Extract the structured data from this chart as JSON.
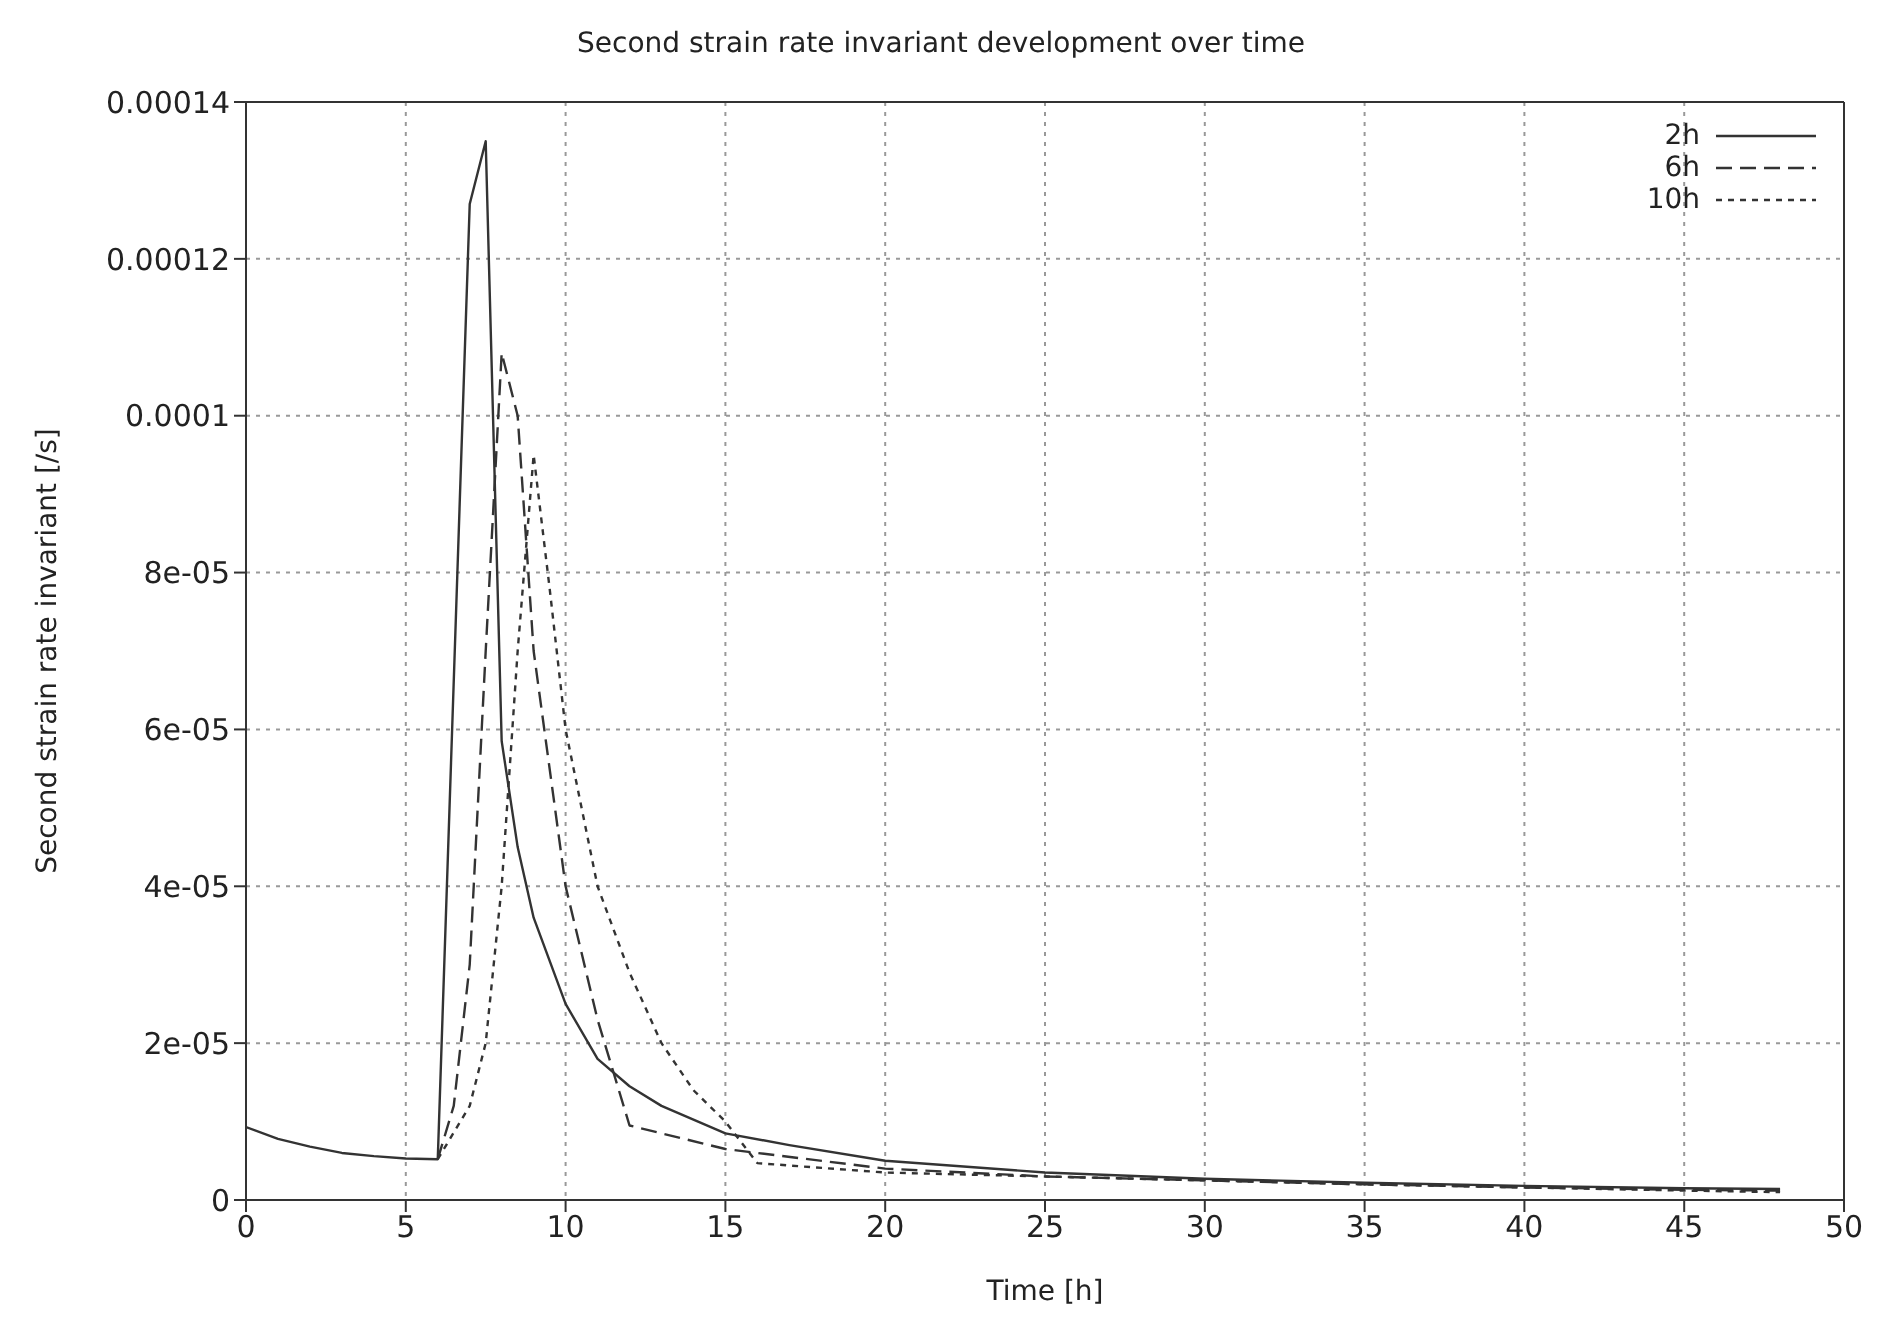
{
  "chart_data": {
    "type": "line",
    "title": "Second strain rate invariant development over time",
    "xlabel": "Time [h]",
    "ylabel": "Second strain rate invariant [/s]",
    "xlim": [
      0,
      50
    ],
    "xticks": [
      0,
      5,
      10,
      15,
      20,
      25,
      30,
      35,
      40,
      45,
      50
    ],
    "ylim": [
      0,
      0.00014
    ],
    "yticks": [
      {
        "value": 0,
        "label": "0"
      },
      {
        "value": 2e-05,
        "label": "2e-05"
      },
      {
        "value": 4e-05,
        "label": "4e-05"
      },
      {
        "value": 6e-05,
        "label": "6e-05"
      },
      {
        "value": 8e-05,
        "label": "8e-05"
      },
      {
        "value": 0.0001,
        "label": "0.0001"
      },
      {
        "value": 0.00012,
        "label": "0.00012"
      },
      {
        "value": 0.00014,
        "label": "0.00014"
      }
    ],
    "grid": true,
    "legend": "top right",
    "marker": "none",
    "series": [
      {
        "name": "2h",
        "color": "#333333",
        "line_style": "solid",
        "x": [
          0,
          1,
          2,
          3,
          4,
          5,
          6,
          7,
          7.5,
          8,
          8.5,
          9,
          10,
          11,
          12,
          13,
          15,
          17,
          20,
          25,
          30,
          35,
          40,
          45,
          48
        ],
        "values": [
          9.3e-06,
          7.8e-06,
          6.8e-06,
          6e-06,
          5.6e-06,
          5.3e-06,
          5.2e-06,
          0.000127,
          0.000135,
          5.85e-05,
          4.5e-05,
          3.6e-05,
          2.5e-05,
          1.8e-05,
          1.45e-05,
          1.2e-05,
          8.5e-06,
          7e-06,
          5e-06,
          3.5e-06,
          2.7e-06,
          2.2e-06,
          1.8e-06,
          1.5e-06,
          1.4e-06
        ]
      },
      {
        "name": "6h",
        "color": "#333333",
        "line_style": "dashed",
        "x": [
          6,
          6.5,
          7,
          7.5,
          8,
          8.5,
          9,
          10,
          11,
          12,
          15,
          20,
          25,
          30,
          35,
          40,
          45,
          48
        ],
        "values": [
          5.2e-06,
          1.2e-05,
          3e-05,
          7e-05,
          0.000108,
          0.0001,
          7e-05,
          4e-05,
          2.3e-05,
          9.5e-06,
          6.5e-06,
          4e-06,
          3e-06,
          2.5e-06,
          2e-06,
          1.6e-06,
          1.3e-06,
          1.2e-06
        ]
      },
      {
        "name": "10h",
        "color": "#333333",
        "line_style": "dotted",
        "x": [
          6,
          7,
          7.5,
          8,
          8.5,
          9,
          9.5,
          10,
          11,
          12,
          13,
          14,
          15,
          16,
          20,
          25,
          30,
          35,
          40,
          45,
          48
        ],
        "values": [
          5.2e-06,
          1.2e-05,
          2e-05,
          4e-05,
          7e-05,
          9.5e-05,
          7.8e-05,
          6e-05,
          4e-05,
          2.9e-05,
          2e-05,
          1.4e-05,
          1e-05,
          4.7e-06,
          3.5e-06,
          3e-06,
          2.5e-06,
          2e-06,
          1.6e-06,
          1.2e-06,
          1e-06
        ]
      }
    ]
  }
}
